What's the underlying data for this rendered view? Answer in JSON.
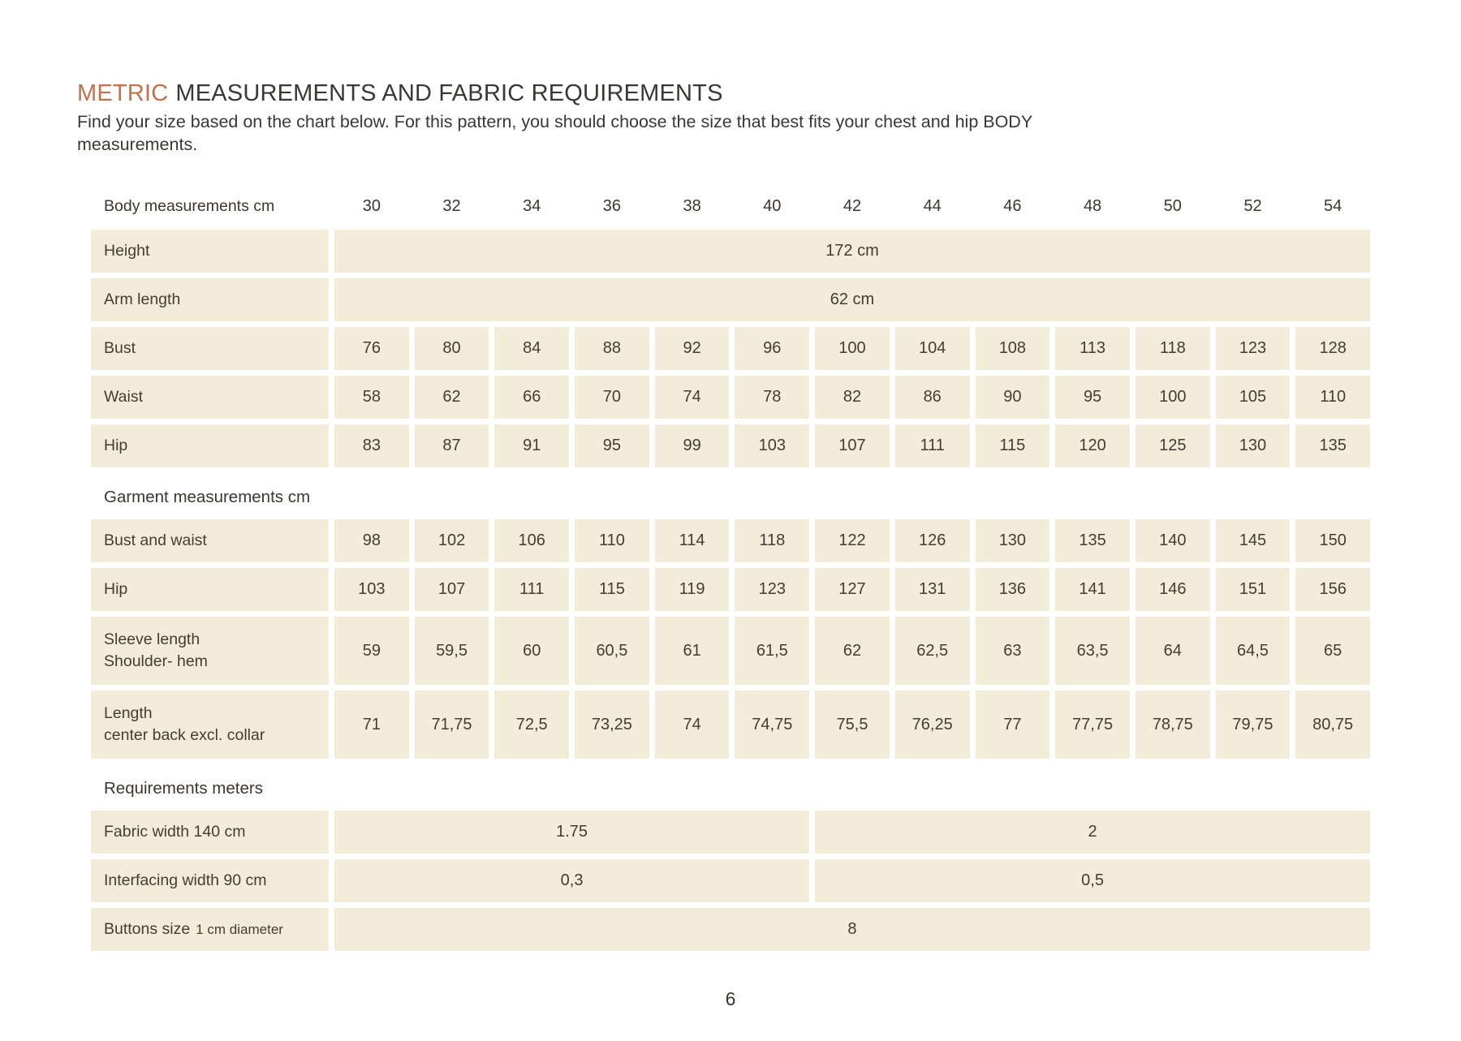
{
  "page": {
    "title_highlight": "METRIC",
    "title_rest": "MEASUREMENTS AND FABRIC REQUIREMENTS",
    "intro_line1": "Find your size based on the chart below. For this pattern, you should choose the size that best fits your chest and hip BODY",
    "intro_line2": "measurements.",
    "page_number": "6",
    "accent_color": "#c1714e",
    "cell_color": "#f3ecd9",
    "text_color": "#3c372e"
  },
  "table": {
    "header_label": "Body measurements cm",
    "sizes": [
      "30",
      "32",
      "34",
      "36",
      "38",
      "40",
      "42",
      "44",
      "46",
      "48",
      "50",
      "52",
      "54"
    ],
    "body_rows": [
      {
        "label": "Height",
        "span_value": "172 cm"
      },
      {
        "label": "Arm length",
        "span_value": "62 cm"
      },
      {
        "label": "Bust",
        "values": [
          "76",
          "80",
          "84",
          "88",
          "92",
          "96",
          "100",
          "104",
          "108",
          "113",
          "118",
          "123",
          "128"
        ]
      },
      {
        "label": "Waist",
        "values": [
          "58",
          "62",
          "66",
          "70",
          "74",
          "78",
          "82",
          "86",
          "90",
          "95",
          "100",
          "105",
          "110"
        ]
      },
      {
        "label": "Hip",
        "values": [
          "83",
          "87",
          "91",
          "95",
          "99",
          "103",
          "107",
          "111",
          "115",
          "120",
          "125",
          "130",
          "135"
        ]
      }
    ],
    "garment_header": "Garment measurements cm",
    "garment_rows": [
      {
        "label": "Bust and waist",
        "values": [
          "98",
          "102",
          "106",
          "110",
          "114",
          "118",
          "122",
          "126",
          "130",
          "135",
          "140",
          "145",
          "150"
        ]
      },
      {
        "label": "Hip",
        "values": [
          "103",
          "107",
          "111",
          "115",
          "119",
          "123",
          "127",
          "131",
          "136",
          "141",
          "146",
          "151",
          "156"
        ]
      },
      {
        "label": "Sleeve length",
        "label2": "Shoulder- hem",
        "values": [
          "59",
          "59,5",
          "60",
          "60,5",
          "61",
          "61,5",
          "62",
          "62,5",
          "63",
          "63,5",
          "64",
          "64,5",
          "65"
        ]
      },
      {
        "label": "Length",
        "label2": "center back excl. collar",
        "values": [
          "71",
          "71,75",
          "72,5",
          "73,25",
          "74",
          "74,75",
          "75,5",
          "76,25",
          "77",
          "77,75",
          "78,75",
          "79,75",
          "80,75"
        ]
      }
    ],
    "requirements_header": "Requirements meters",
    "requirement_rows": [
      {
        "label": "Fabric width 140 cm",
        "spans": [
          {
            "value": "1.75",
            "cols": 6
          },
          {
            "value": "2",
            "cols": 7
          }
        ]
      },
      {
        "label": "Interfacing width 90 cm",
        "spans": [
          {
            "value": "0,3",
            "cols": 6
          },
          {
            "value": "0,5",
            "cols": 7
          }
        ]
      },
      {
        "label": "Buttons size",
        "label_small": "1 cm diameter",
        "spans": [
          {
            "value": "8",
            "cols": 13
          }
        ]
      }
    ]
  }
}
